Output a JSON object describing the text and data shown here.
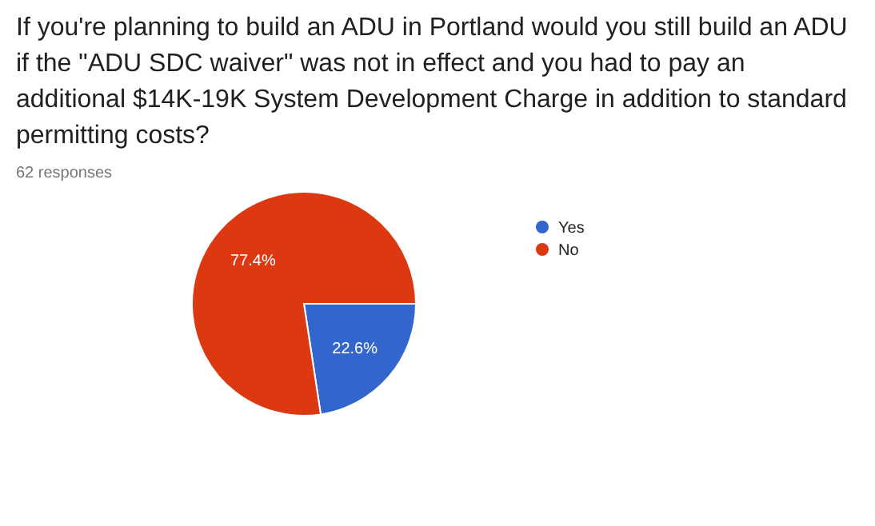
{
  "chart_data": {
    "type": "pie",
    "title": "If you're planning to build an ADU in Portland would you still build an ADU if the \"ADU SDC waiver\" was not in effect and you had to pay an additional $14K-19K System Development Charge in addition to standard permitting costs?",
    "subtitle": "62 responses",
    "categories": [
      "Yes",
      "No"
    ],
    "values": [
      22.6,
      77.4
    ],
    "colors": [
      "#3366cc",
      "#dc3912"
    ],
    "value_labels": [
      "22.6%",
      "77.4%"
    ],
    "legend": "right"
  }
}
